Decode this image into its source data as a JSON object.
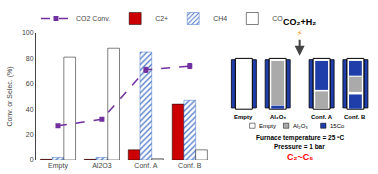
{
  "chart_data": {
    "type": "bar",
    "categories": [
      "Empty",
      "Al2O3",
      "Conf. A",
      "Conf. B"
    ],
    "ylabel": "Conv. or Selec. (%)",
    "ylim": [
      0,
      100
    ],
    "yticks": [
      0,
      20,
      40,
      60,
      80,
      100
    ],
    "grid": false,
    "series": [
      {
        "name": "CO2 Conv.",
        "type": "line",
        "color": "#7030a0",
        "marker": "square",
        "line_style": "dashed",
        "values": [
          27,
          32,
          71,
          74
        ],
        "errors": [
          1,
          1,
          2,
          2
        ]
      },
      {
        "name": "C2+",
        "type": "bar",
        "color": "#cc0000",
        "values": [
          0.5,
          0.5,
          8,
          44
        ]
      },
      {
        "name": "CH4",
        "type": "bar",
        "color": "#4472c4",
        "marker": "hatch",
        "values": [
          2,
          2,
          85,
          47
        ]
      },
      {
        "name": "CO",
        "type": "bar",
        "color": "#ffffff",
        "values": [
          81,
          88,
          1,
          8
        ]
      }
    ],
    "annotations": [
      {
        "text": "CO₂+H₂"
      },
      {
        "text": "⚡",
        "color": "#ff8800"
      },
      {
        "text": "Empty"
      },
      {
        "text": "Al₂O₃"
      },
      {
        "text": "Conf. A"
      },
      {
        "text": "Conf. B"
      },
      {
        "text": "Empty",
        "color": "#ffffff"
      },
      {
        "text": "Al₂O₃",
        "color": "#aaaaaa"
      },
      {
        "text": "15Co",
        "color": "#1f3eaa"
      },
      {
        "text": "Furnace temperature = 25 ºC"
      },
      {
        "text": "Pressure = 1 bar"
      },
      {
        "text": "C₂~C₅",
        "color": "red"
      }
    ]
  }
}
